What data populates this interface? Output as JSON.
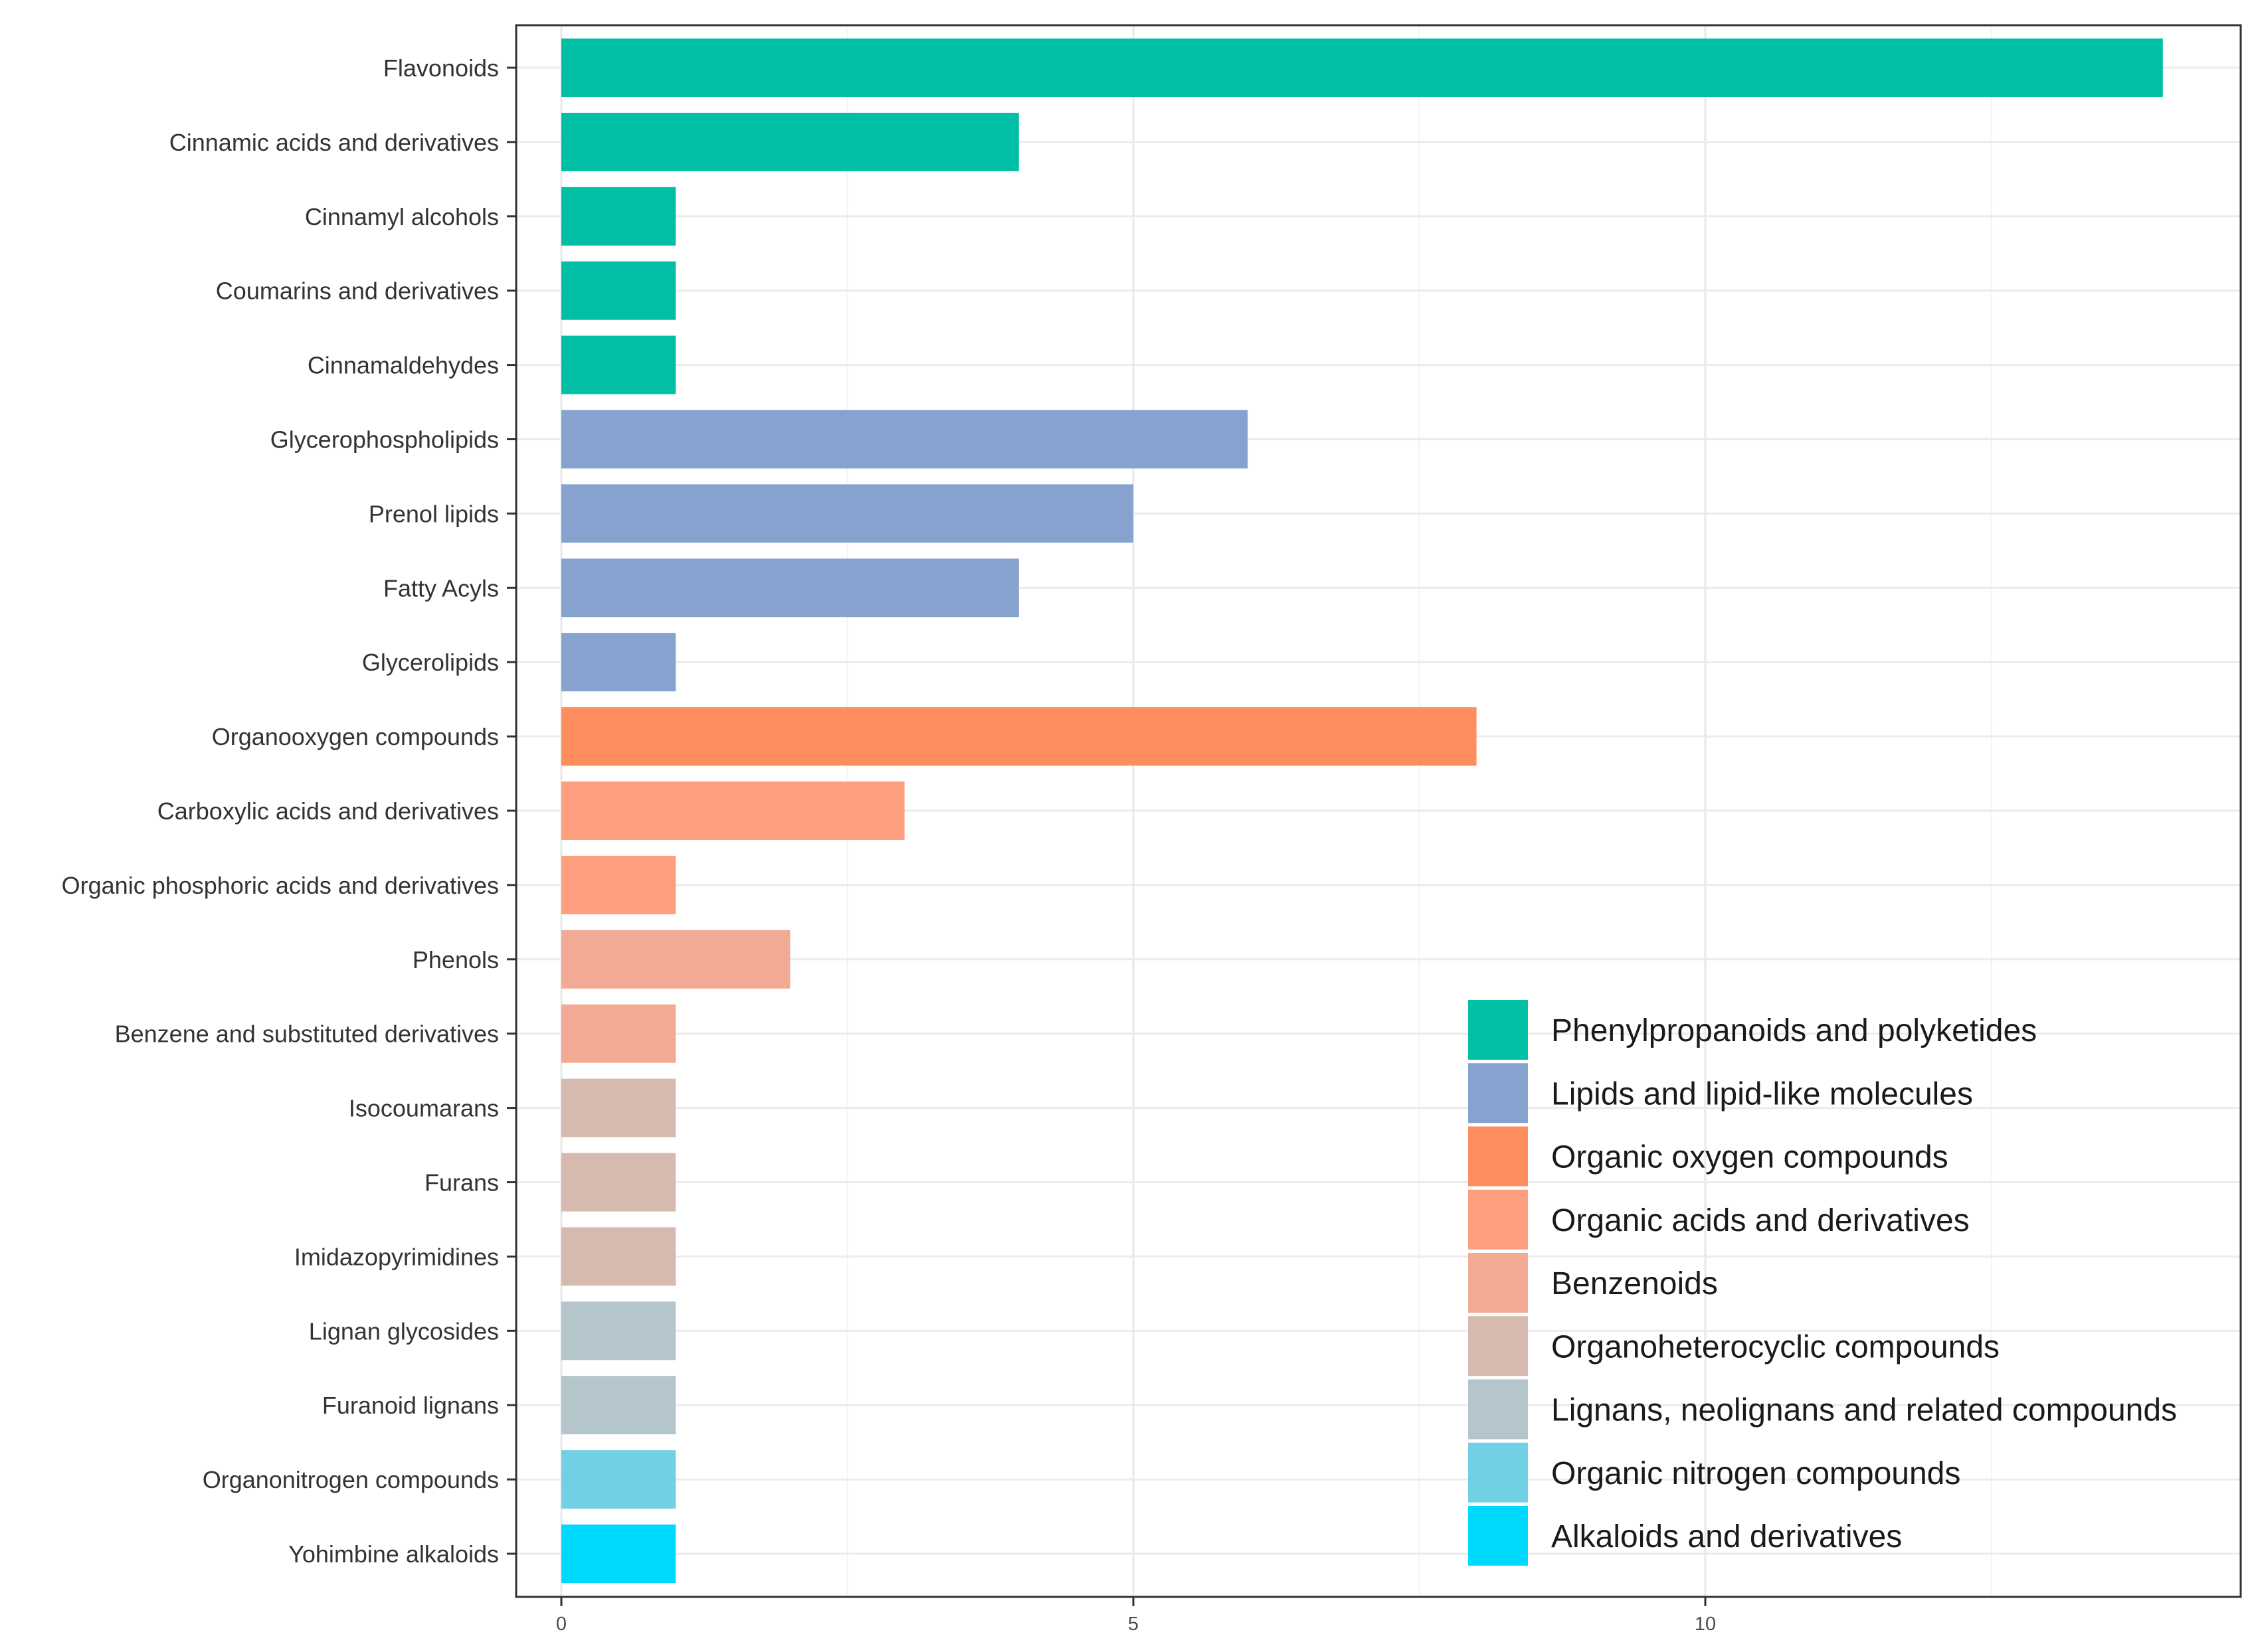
{
  "chart_data": {
    "type": "bar",
    "orientation": "horizontal",
    "title": "",
    "xlabel": "",
    "ylabel": "",
    "xlim": [
      0,
      14.7
    ],
    "xticks": [
      0,
      5,
      10
    ],
    "grid": true,
    "legend_position": "bottom-right",
    "categories": [
      "Flavonoids",
      "Cinnamic acids and derivatives",
      "Cinnamyl alcohols",
      "Coumarins and derivatives",
      "Cinnamaldehydes",
      "Glycerophospholipids",
      "Prenol lipids",
      "Fatty Acyls",
      "Glycerolipids",
      "Organooxygen compounds",
      "Carboxylic acids and derivatives",
      "Organic phosphoric acids and derivatives",
      "Phenols",
      "Benzene and substituted derivatives",
      "Isocoumarans",
      "Furans",
      "Imidazopyrimidines",
      "Lignan glycosides",
      "Furanoid lignans",
      "Organonitrogen compounds",
      "Yohimbine alkaloids"
    ],
    "values": [
      14,
      4,
      1,
      1,
      1,
      6,
      5,
      4,
      1,
      8,
      3,
      1,
      2,
      1,
      1,
      1,
      1,
      1,
      1,
      1,
      1
    ],
    "groups": [
      0,
      0,
      0,
      0,
      0,
      1,
      1,
      1,
      1,
      2,
      3,
      3,
      4,
      4,
      5,
      5,
      5,
      6,
      6,
      7,
      8
    ],
    "legend": [
      {
        "name": "Phenylpropanoids and polyketides",
        "color": "#00BFA5"
      },
      {
        "name": "Lipids and lipid-like molecules",
        "color": "#86A2CF"
      },
      {
        "name": "Organic oxygen compounds",
        "color": "#FF8E5E"
      },
      {
        "name": "Organic acids and derivatives",
        "color": "#FD9E7E"
      },
      {
        "name": "Benzenoids",
        "color": "#F2AA94"
      },
      {
        "name": "Organoheterocyclic compounds",
        "color": "#D6BAAF"
      },
      {
        "name": "Lignans, neolignans and related compounds",
        "color": "#B5C5CC"
      },
      {
        "name": "Organic nitrogen compounds",
        "color": "#72D0E4"
      },
      {
        "name": "Alkaloids and derivatives",
        "color": "#00D9FF"
      }
    ]
  }
}
